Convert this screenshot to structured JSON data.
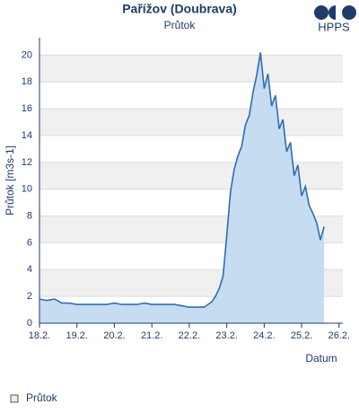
{
  "chart_data": {
    "type": "area",
    "title": "Pařížov (Doubrava)",
    "subtitle": "Průtok",
    "logo": "HPPS",
    "y_label": "Průtok [m3s-1]",
    "x_label": "Datum",
    "color": "#2f6db3",
    "fill": "#c6dcf1",
    "grid": true,
    "series": [
      {
        "name": "Průtok",
        "x": [
          18,
          18.2,
          18.4,
          18.6,
          18.8,
          19,
          19.2,
          19.4,
          19.6,
          19.8,
          20,
          20.2,
          20.4,
          20.6,
          20.8,
          21,
          21.2,
          21.4,
          21.6,
          21.8,
          22,
          22.2,
          22.4,
          22.6,
          22.7,
          22.8,
          22.9,
          23.0,
          23.1,
          23.2,
          23.3,
          23.4,
          23.5,
          23.6,
          23.7,
          23.8,
          23.9,
          24.0,
          24.1,
          24.2,
          24.3,
          24.4,
          24.5,
          24.6,
          24.7,
          24.8,
          24.9,
          25.0,
          25.1,
          25.2,
          25.3,
          25.4,
          25.5,
          25.6
        ],
        "values": [
          1.8,
          1.7,
          1.8,
          1.5,
          1.5,
          1.4,
          1.4,
          1.4,
          1.4,
          1.4,
          1.5,
          1.4,
          1.4,
          1.4,
          1.5,
          1.4,
          1.4,
          1.4,
          1.4,
          1.3,
          1.2,
          1.2,
          1.2,
          1.6,
          2.0,
          2.6,
          3.5,
          6.5,
          9.8,
          11.5,
          12.5,
          13.2,
          14.8,
          15.5,
          17.2,
          18.5,
          20.2,
          17.5,
          18.6,
          16.2,
          17.0,
          14.5,
          15.2,
          12.8,
          13.5,
          11.0,
          11.8,
          9.5,
          10.2,
          8.8,
          8.2,
          7.5,
          6.2,
          7.2
        ]
      }
    ],
    "xlim": [
      18,
      26.1
    ],
    "xticks": [
      {
        "value": 18,
        "label": "18.2."
      },
      {
        "value": 19,
        "label": "19.2."
      },
      {
        "value": 20,
        "label": "20.2."
      },
      {
        "value": 21,
        "label": "21.2."
      },
      {
        "value": 22,
        "label": "22.2."
      },
      {
        "value": 23,
        "label": "23.2."
      },
      {
        "value": 24,
        "label": "24.2."
      },
      {
        "value": 25,
        "label": "25.2."
      },
      {
        "value": 26,
        "label": "26.2."
      }
    ],
    "ylim": [
      0,
      21.3
    ],
    "yticks": [
      0,
      2,
      4,
      6,
      8,
      10,
      12,
      14,
      16,
      18,
      20
    ]
  }
}
